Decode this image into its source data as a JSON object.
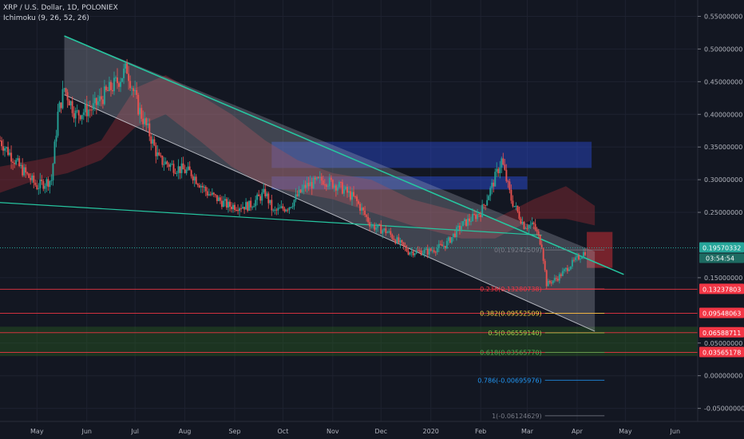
{
  "symbol_title": "XRP / U.S. Dollar, 1D, POLONIEX",
  "indicator_label": "Ichimoku (9, 26, 52, 26)",
  "colors": {
    "background": "#131722",
    "up": "#26a69a",
    "down": "#ef5350",
    "channel_line": "#26c6a0",
    "channel_fill": "#b7b9c8",
    "blue_zone": "#2a4bd6",
    "green_zone": "#2e6b1f",
    "red_line": "#f23645",
    "price_label": "#26a69a"
  },
  "chart_data": {
    "type": "candlestick",
    "y_axis_range": [
      -0.07,
      0.575
    ],
    "y_ticks": [
      "0.55000000",
      "0.50000000",
      "0.45000000",
      "0.40000000",
      "0.35000000",
      "0.30000000",
      "0.25000000",
      "0.15000000",
      "0.05000000",
      "0.00000000",
      "-0.05000000"
    ],
    "y_tick_values": [
      0.55,
      0.5,
      0.45,
      0.4,
      0.35,
      0.3,
      0.25,
      0.15,
      0.05,
      0.0,
      -0.05
    ],
    "x_ticks": [
      "May",
      "Jun",
      "Jul",
      "Aug",
      "Sep",
      "Oct",
      "Nov",
      "Dec",
      "2020",
      "Feb",
      "Mar",
      "Apr",
      "May",
      "Jun"
    ],
    "x_tick_dates": [
      "2019-05-01",
      "2019-06-01",
      "2019-07-01",
      "2019-08-01",
      "2019-09-01",
      "2019-10-01",
      "2019-11-01",
      "2019-12-01",
      "2020-01-01",
      "2020-02-01",
      "2020-03-01",
      "2020-04-01",
      "2020-05-01",
      "2020-06-01"
    ],
    "date_range": [
      "2019-04-08",
      "2020-06-15"
    ],
    "price_series": [
      [
        "2019-04-08",
        0.36
      ],
      [
        "2019-04-20",
        0.32
      ],
      [
        "2019-05-01",
        0.29
      ],
      [
        "2019-05-10",
        0.3
      ],
      [
        "2019-05-14",
        0.4
      ],
      [
        "2019-05-18",
        0.44
      ],
      [
        "2019-05-25",
        0.4
      ],
      [
        "2019-06-05",
        0.41
      ],
      [
        "2019-06-12",
        0.43
      ],
      [
        "2019-06-20",
        0.45
      ],
      [
        "2019-06-26",
        0.47
      ],
      [
        "2019-07-03",
        0.41
      ],
      [
        "2019-07-10",
        0.37
      ],
      [
        "2019-07-16",
        0.33
      ],
      [
        "2019-07-25",
        0.32
      ],
      [
        "2019-08-05",
        0.31
      ],
      [
        "2019-08-15",
        0.28
      ],
      [
        "2019-08-28",
        0.26
      ],
      [
        "2019-09-10",
        0.26
      ],
      [
        "2019-09-20",
        0.28
      ],
      [
        "2019-09-25",
        0.25
      ],
      [
        "2019-10-05",
        0.26
      ],
      [
        "2019-10-15",
        0.29
      ],
      [
        "2019-10-26",
        0.3
      ],
      [
        "2019-11-05",
        0.29
      ],
      [
        "2019-11-15",
        0.27
      ],
      [
        "2019-11-25",
        0.23
      ],
      [
        "2019-12-05",
        0.22
      ],
      [
        "2019-12-18",
        0.19
      ],
      [
        "2019-12-30",
        0.19
      ],
      [
        "2020-01-10",
        0.2
      ],
      [
        "2020-01-20",
        0.23
      ],
      [
        "2020-02-01",
        0.25
      ],
      [
        "2020-02-08",
        0.29
      ],
      [
        "2020-02-14",
        0.33
      ],
      [
        "2020-02-20",
        0.27
      ],
      [
        "2020-02-28",
        0.23
      ],
      [
        "2020-03-05",
        0.23
      ],
      [
        "2020-03-10",
        0.2
      ],
      [
        "2020-03-13",
        0.14
      ],
      [
        "2020-03-20",
        0.15
      ],
      [
        "2020-03-28",
        0.17
      ],
      [
        "2020-04-06",
        0.19
      ]
    ],
    "annotations": {
      "last_price": "0.19570332",
      "last_price_value": 0.1957,
      "countdown": "03:54:54",
      "red_levels": [
        {
          "label": "0.13237803",
          "value": 0.13237803
        },
        {
          "label": "0.09548063",
          "value": 0.09548063
        },
        {
          "label": "0.06588711",
          "value": 0.06588711
        },
        {
          "label": "0.03565178",
          "value": 0.03565178
        }
      ],
      "fib_levels": [
        {
          "text": "0(0.19242509)",
          "value": 0.19242509,
          "color": "#787b86"
        },
        {
          "text": "0.236(0.13280738)",
          "value": 0.1328,
          "color": "#f23645"
        },
        {
          "text": "0.382(0.09552509)",
          "value": 0.0955,
          "color": "#f5d142"
        },
        {
          "text": "0.5(0.06559140)",
          "value": 0.06559,
          "color": "#9bd24a"
        },
        {
          "text": "0.618(0.03565770)",
          "value": 0.03566,
          "color": "#4caf50"
        },
        {
          "text": "0.786(-0.00695976)",
          "value": -0.00696,
          "color": "#2196f3"
        },
        {
          "text": "1(-0.06124629)",
          "value": -0.06125,
          "color": "#787b86"
        }
      ]
    }
  }
}
